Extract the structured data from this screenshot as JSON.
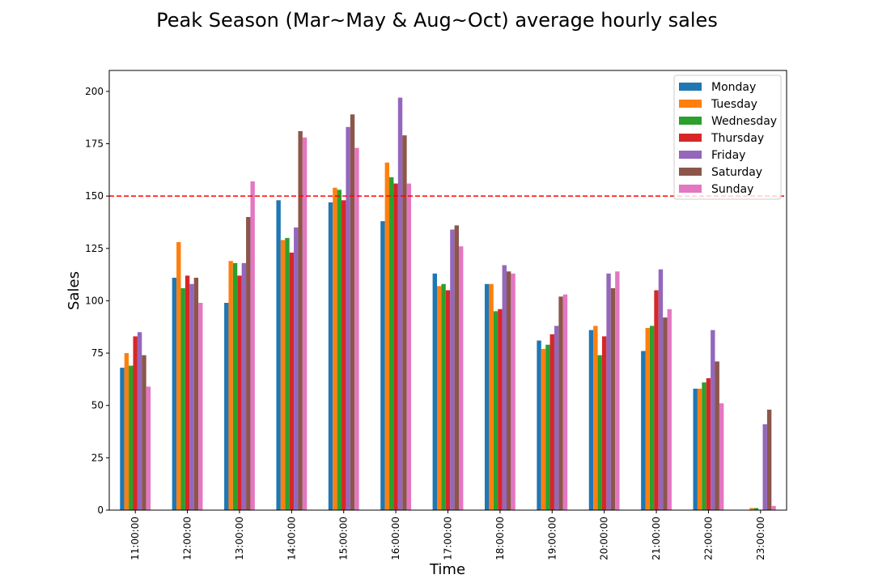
{
  "chart_data": {
    "type": "bar",
    "title": "Peak Season (Mar~May & Aug~Oct) average hourly sales",
    "xlabel": "Time",
    "ylabel": "Sales",
    "ylim": [
      0,
      210
    ],
    "yticks": [
      0,
      25,
      50,
      75,
      100,
      125,
      150,
      175,
      200
    ],
    "grid": false,
    "legend_position": "top-right",
    "categories": [
      "11:00:00",
      "12:00:00",
      "13:00:00",
      "14:00:00",
      "15:00:00",
      "16:00:00",
      "17:00:00",
      "18:00:00",
      "19:00:00",
      "20:00:00",
      "21:00:00",
      "22:00:00",
      "23:00:00"
    ],
    "series": [
      {
        "name": "Monday",
        "color": "#1f77b4",
        "values": [
          68,
          111,
          99,
          148,
          147,
          138,
          113,
          108,
          81,
          86,
          76,
          58,
          0
        ]
      },
      {
        "name": "Tuesday",
        "color": "#ff7f0e",
        "values": [
          75,
          128,
          119,
          129,
          154,
          166,
          107,
          108,
          77,
          88,
          87,
          58,
          1
        ]
      },
      {
        "name": "Wednesday",
        "color": "#2ca02c",
        "values": [
          69,
          106,
          118,
          130,
          153,
          159,
          108,
          95,
          79,
          74,
          88,
          61,
          1
        ]
      },
      {
        "name": "Thursday",
        "color": "#d62728",
        "values": [
          83,
          112,
          112,
          123,
          148,
          156,
          105,
          96,
          84,
          83,
          105,
          63,
          0
        ]
      },
      {
        "name": "Friday",
        "color": "#9467bd",
        "values": [
          85,
          108,
          118,
          135,
          183,
          197,
          134,
          117,
          88,
          113,
          115,
          86,
          41
        ]
      },
      {
        "name": "Saturday",
        "color": "#8c564b",
        "values": [
          74,
          111,
          140,
          181,
          189,
          179,
          136,
          114,
          102,
          106,
          92,
          71,
          48
        ]
      },
      {
        "name": "Sunday",
        "color": "#e377c2",
        "values": [
          59,
          99,
          157,
          178,
          173,
          156,
          126,
          113,
          103,
          114,
          96,
          51,
          2
        ]
      }
    ],
    "reference_line": {
      "y": 150,
      "color": "#ff0000",
      "style": "dashed"
    }
  }
}
